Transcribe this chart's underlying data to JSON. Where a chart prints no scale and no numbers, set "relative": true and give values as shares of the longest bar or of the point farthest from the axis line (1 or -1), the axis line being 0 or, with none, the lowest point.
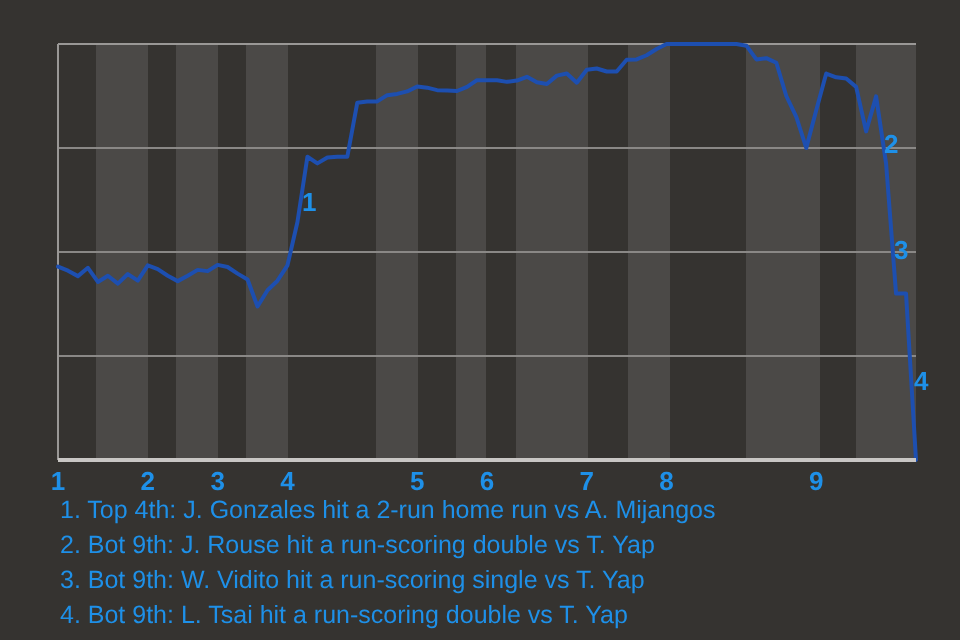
{
  "chart_data": {
    "type": "line",
    "relative": true,
    "grid": true,
    "categories": [
      "1",
      null,
      null,
      null,
      null,
      null,
      null,
      null,
      null,
      "2",
      null,
      null,
      null,
      null,
      null,
      null,
      "3",
      null,
      null,
      null,
      null,
      null,
      null,
      "4",
      null,
      null,
      null,
      null,
      null,
      null,
      null,
      null,
      null,
      null,
      null,
      null,
      "5",
      null,
      null,
      null,
      null,
      null,
      null,
      "6",
      null,
      null,
      null,
      null,
      null,
      null,
      null,
      null,
      null,
      "7",
      null,
      null,
      null,
      null,
      null,
      null,
      null,
      "8",
      null,
      null,
      null,
      null,
      null,
      null,
      null,
      null,
      null,
      null,
      null,
      null,
      null,
      null,
      "9",
      null,
      null,
      null,
      null,
      null,
      null,
      null,
      null,
      null,
      null
    ],
    "series": [
      {
        "color": "#1d4fb0",
        "values": [
          0.465,
          0.455,
          0.442,
          0.462,
          0.428,
          0.443,
          0.424,
          0.447,
          0.431,
          0.468,
          0.459,
          0.443,
          0.43,
          0.443,
          0.457,
          0.454,
          0.469,
          0.464,
          0.448,
          0.434,
          0.369,
          0.408,
          0.431,
          0.468,
          0.572,
          0.729,
          0.713,
          0.727,
          0.729,
          0.729,
          0.859,
          0.862,
          0.862,
          0.877,
          0.88,
          0.886,
          0.898,
          0.895,
          0.889,
          0.888,
          0.887,
          0.897,
          0.913,
          0.913,
          0.913,
          0.909,
          0.912,
          0.921,
          0.908,
          0.904,
          0.924,
          0.929,
          0.907,
          0.938,
          0.941,
          0.934,
          0.934,
          0.962,
          0.963,
          0.973,
          0.988,
          1,
          1,
          1,
          1,
          1,
          1,
          1,
          1,
          0.996,
          0.963,
          0.966,
          0.955,
          0.875,
          0.825,
          0.75,
          0.841,
          0.929,
          0.92,
          0.917,
          0.897,
          0.79,
          0.874,
          0.713,
          0.4,
          0.4,
          0
        ]
      }
    ],
    "annotations": [
      {
        "text": "1",
        "y": 0.62
      },
      {
        "text": "2",
        "y": 0.76
      },
      {
        "text": "3",
        "y": 0.505
      },
      {
        "text": "4",
        "y": 0.19
      },
      "1. Top 4th: J. Gonzales hit a 2-run home run vs A. Mijangos",
      "2. Bot 9th: J. Rouse hit a run-scoring double vs T. Yap",
      "3. Bot 9th: W. Vidito hit a run-scoring single vs T. Yap",
      "4. Bot 9th: L. Tsai hit a run-scoring double vs T. Yap"
    ]
  }
}
